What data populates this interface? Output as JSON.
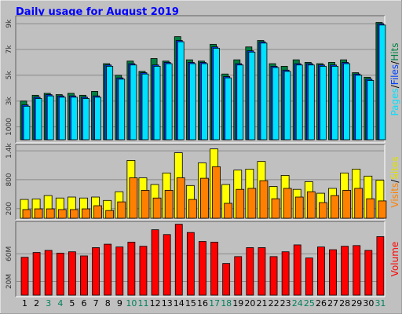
{
  "chart_data": [
    {
      "type": "bar",
      "title": "Daily usage for August 2019",
      "legend_separator": "/",
      "ylim": [
        0,
        9500
      ],
      "yticks": [
        1000,
        {
          "value": 3000,
          "label": "3k"
        },
        {
          "value": 5000,
          "label": "5k"
        },
        {
          "value": 7000,
          "label": "7k"
        },
        {
          "value": 9000,
          "label": "9k"
        }
      ],
      "grid": true,
      "series": [
        {
          "name": "Pages",
          "color": "#00e0ff",
          "values": [
            2600,
            3200,
            3400,
            3300,
            3300,
            3200,
            3300,
            5700,
            4700,
            5800,
            5100,
            5700,
            5900,
            7600,
            5900,
            5900,
            7100,
            4800,
            5800,
            6800,
            7500,
            5600,
            5300,
            5800,
            5800,
            5700,
            5700,
            5900,
            5000,
            4600,
            8900
          ]
        },
        {
          "name": "Files",
          "color": "#0040ff",
          "values": [
            2700,
            3300,
            3500,
            3400,
            3400,
            3300,
            3400,
            5800,
            4800,
            5900,
            5200,
            5800,
            6000,
            7700,
            6000,
            6000,
            7200,
            4900,
            5900,
            6900,
            7600,
            5700,
            5400,
            5900,
            5900,
            5800,
            5800,
            6000,
            5100,
            4700,
            9000
          ]
        },
        {
          "name": "Hits",
          "color": "#008040",
          "values": [
            3000,
            3450,
            3600,
            3500,
            3600,
            3450,
            3750,
            5900,
            5000,
            6100,
            5300,
            6300,
            6100,
            8000,
            6200,
            6100,
            7400,
            5100,
            6200,
            7200,
            7700,
            5900,
            5700,
            6200,
            6000,
            5900,
            6000,
            6200,
            5200,
            4850,
            9100
          ]
        }
      ]
    },
    {
      "type": "bar",
      "legend_separator": "/",
      "ylim": [
        0,
        1500
      ],
      "yticks": [
        200,
        800,
        {
          "value": 1400,
          "label": "1.4k"
        }
      ],
      "grid": true,
      "series": [
        {
          "name": "Visits",
          "color": "#ff8000",
          "values": [
            180,
            195,
            195,
            180,
            180,
            195,
            260,
            160,
            340,
            840,
            580,
            420,
            580,
            840,
            390,
            830,
            1070,
            310,
            600,
            620,
            780,
            405,
            620,
            440,
            550,
            325,
            470,
            580,
            620,
            405,
            360
          ]
        },
        {
          "name": "Sites",
          "color": "#ffff00",
          "values": [
            390,
            400,
            470,
            420,
            440,
            420,
            440,
            370,
            550,
            1200,
            840,
            700,
            940,
            1360,
            680,
            1150,
            1440,
            700,
            1000,
            1020,
            1180,
            660,
            890,
            600,
            760,
            520,
            620,
            940,
            1020,
            875,
            790
          ]
        }
      ]
    },
    {
      "type": "bar",
      "ylim": [
        0,
        106
      ],
      "yticks": [
        {
          "value": 20,
          "label": "20M"
        },
        {
          "value": 60,
          "label": "60M"
        }
      ],
      "grid": true,
      "categories": [
        "1",
        "2",
        "3",
        "4",
        "5",
        "6",
        "7",
        "8",
        "9",
        "10",
        "11",
        "12",
        "13",
        "14",
        "15",
        "16",
        "17",
        "18",
        "19",
        "20",
        "21",
        "22",
        "23",
        "24",
        "25",
        "26",
        "27",
        "28",
        "29",
        "30",
        "31"
      ],
      "category_colors": [
        "#000000",
        "#000000",
        "#00805c",
        "#00805c",
        "#000000",
        "#000000",
        "#000000",
        "#000000",
        "#000000",
        "#00805c",
        "#00805c",
        "#000000",
        "#000000",
        "#000000",
        "#000000",
        "#000000",
        "#00805c",
        "#00805c",
        "#000000",
        "#000000",
        "#000000",
        "#000000",
        "#000000",
        "#00805c",
        "#00805c",
        "#000000",
        "#000000",
        "#000000",
        "#000000",
        "#000000",
        "#00805c"
      ],
      "series": [
        {
          "name": "Volume",
          "color": "#ff0000",
          "values": [
            55,
            62,
            65,
            61,
            63,
            57,
            69,
            74,
            70,
            77,
            71,
            95,
            88,
            103,
            91,
            78,
            77,
            46,
            56,
            69,
            69,
            56,
            63,
            73,
            54,
            70,
            66,
            71,
            72,
            65,
            85
          ]
        }
      ]
    }
  ]
}
